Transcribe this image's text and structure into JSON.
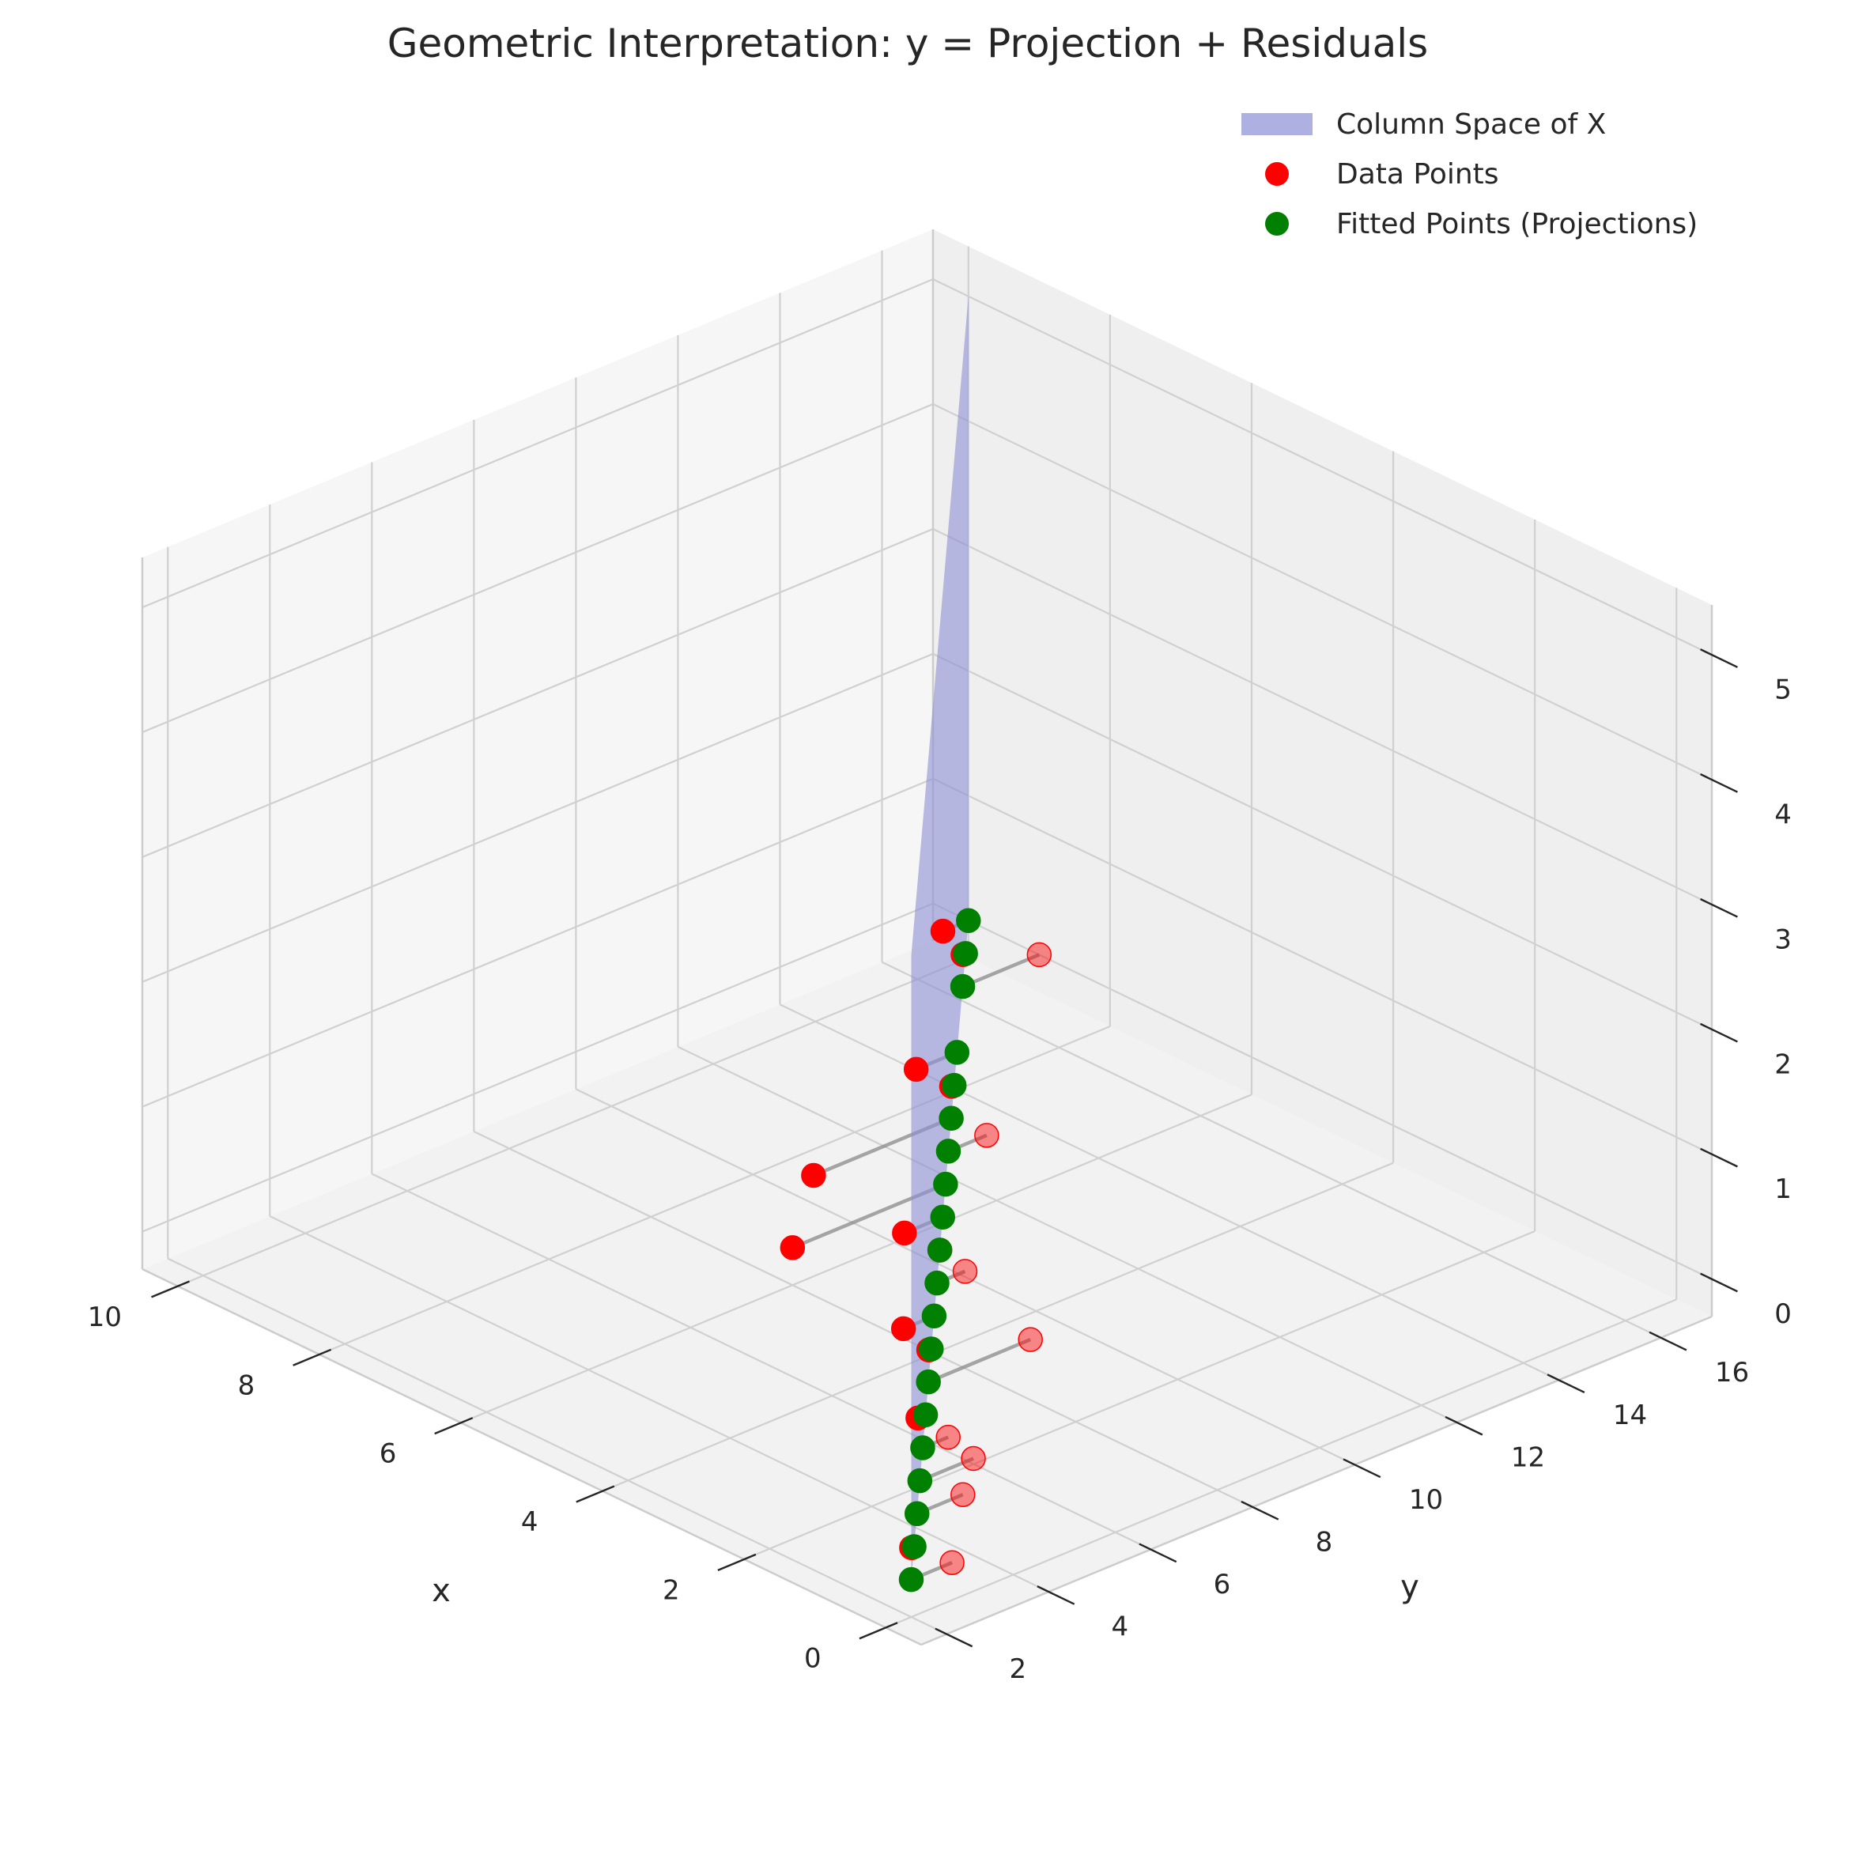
{
  "chart_data": {
    "type": "scatter3d",
    "title": "Geometric Interpretation: y = Projection + Residuals",
    "xlabel": "x",
    "ylabel": "y",
    "zlabel": "",
    "x_ticks": [
      0,
      2,
      4,
      6,
      8,
      10
    ],
    "y_ticks": [
      2,
      4,
      6,
      8,
      10,
      12,
      14,
      16
    ],
    "z_ticks": [
      0,
      1,
      2,
      3,
      4,
      5
    ],
    "xlim": [
      -0.5,
      10.5
    ],
    "ylim": [
      1.5,
      17.0
    ],
    "zlim": [
      -0.3,
      5.4
    ],
    "grid": true,
    "legend_position": "top-right",
    "legend": [
      {
        "label": "Column Space of X",
        "kind": "patch",
        "color": "#8c8fd4"
      },
      {
        "label": "Data Points",
        "kind": "marker",
        "color": "#ff0000"
      },
      {
        "label": "Fitted Points (Projections)",
        "kind": "marker",
        "color": "#008000"
      }
    ],
    "plane": {
      "label": "Column Space of X",
      "color": "#8c8fd4",
      "opacity": 0.6,
      "x_range": [
        0,
        10
      ],
      "y_intercept": 2.0,
      "y_slope": 1.5,
      "z_range": [
        0,
        5
      ]
    },
    "series": [
      {
        "name": "Data Points",
        "color": "#ff0000",
        "points": [
          {
            "x": 0.0,
            "y": 2.8,
            "z": 0.0
          },
          {
            "x": 0.5,
            "y": 2.7,
            "z": 0.0
          },
          {
            "x": 1.0,
            "y": 4.4,
            "z": 0.0
          },
          {
            "x": 1.5,
            "y": 5.3,
            "z": 0.0
          },
          {
            "x": 2.0,
            "y": 5.5,
            "z": 0.0
          },
          {
            "x": 2.5,
            "y": 5.6,
            "z": 0.0
          },
          {
            "x": 3.0,
            "y": 8.5,
            "z": 0.0
          },
          {
            "x": 3.5,
            "y": 7.2,
            "z": 0.0
          },
          {
            "x": 4.0,
            "y": 7.4,
            "z": 0.0
          },
          {
            "x": 4.5,
            "y": 9.3,
            "z": 0.0
          },
          {
            "x": 5.0,
            "y": 9.5,
            "z": 0.0
          },
          {
            "x": 5.5,
            "y": 9.5,
            "z": 0.0
          },
          {
            "x": 6.0,
            "y": 8.0,
            "z": 0.0
          },
          {
            "x": 6.5,
            "y": 12.5,
            "z": 0.0
          },
          {
            "x": 7.0,
            "y": 9.8,
            "z": 0.0
          },
          {
            "x": 7.5,
            "y": 13.2,
            "z": 0.0
          },
          {
            "x": 8.0,
            "y": 13.2,
            "z": 0.0
          },
          {
            "x": 9.0,
            "y": 17.0,
            "z": 0.0
          },
          {
            "x": 9.5,
            "y": 16.2,
            "z": 0.0
          },
          {
            "x": 10.0,
            "y": 16.5,
            "z": 0.0
          }
        ]
      },
      {
        "name": "Fitted Points (Projections)",
        "color": "#008000",
        "points": [
          {
            "x": 0.0,
            "y": 2.0,
            "z": 0.0
          },
          {
            "x": 0.5,
            "y": 2.75,
            "z": 0.0
          },
          {
            "x": 1.0,
            "y": 3.5,
            "z": 0.0
          },
          {
            "x": 1.5,
            "y": 4.25,
            "z": 0.0
          },
          {
            "x": 2.0,
            "y": 5.0,
            "z": 0.0
          },
          {
            "x": 2.5,
            "y": 5.75,
            "z": 0.0
          },
          {
            "x": 3.0,
            "y": 6.5,
            "z": 0.0
          },
          {
            "x": 3.5,
            "y": 7.25,
            "z": 0.0
          },
          {
            "x": 4.0,
            "y": 8.0,
            "z": 0.0
          },
          {
            "x": 4.5,
            "y": 8.75,
            "z": 0.0
          },
          {
            "x": 5.0,
            "y": 9.5,
            "z": 0.0
          },
          {
            "x": 5.5,
            "y": 10.25,
            "z": 0.0
          },
          {
            "x": 6.0,
            "y": 11.0,
            "z": 0.0
          },
          {
            "x": 6.5,
            "y": 11.75,
            "z": 0.0
          },
          {
            "x": 7.0,
            "y": 12.5,
            "z": 0.0
          },
          {
            "x": 7.5,
            "y": 13.25,
            "z": 0.0
          },
          {
            "x": 8.0,
            "y": 14.0,
            "z": 0.0
          },
          {
            "x": 9.0,
            "y": 15.5,
            "z": 0.0
          },
          {
            "x": 9.5,
            "y": 16.25,
            "z": 0.0
          },
          {
            "x": 10.0,
            "y": 17.0,
            "z": 0.0
          }
        ]
      }
    ]
  }
}
